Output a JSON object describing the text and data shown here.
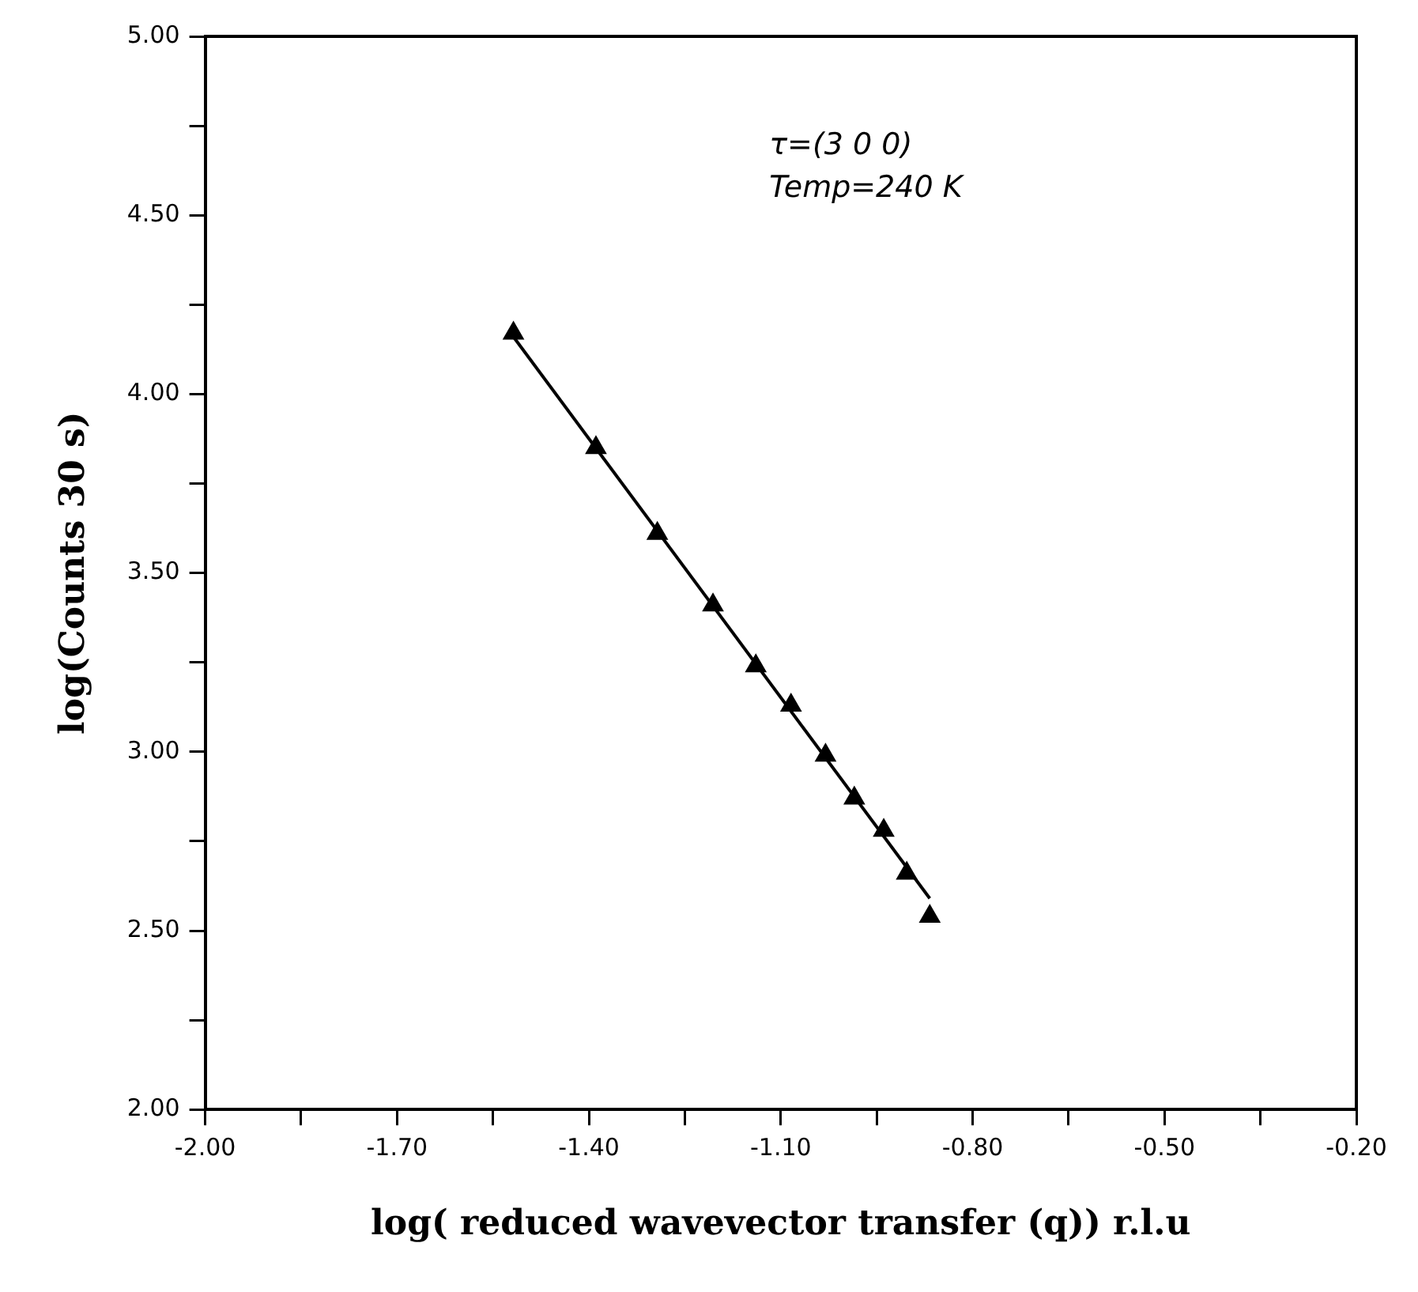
{
  "chart_data": {
    "type": "scatter",
    "xlabel": "log( reduced wavevector transfer (q)) r.l.u",
    "ylabel": "log(Counts 30 s)",
    "annotations": [
      "τ=(3 0 0)",
      "Temp=240 K"
    ],
    "series": [
      {
        "color": "#000000",
        "marker": "triangle",
        "x": [
          -1.518,
          -1.389,
          -1.293,
          -1.206,
          -1.139,
          -1.084,
          -1.03,
          -0.985,
          -0.939,
          -0.903,
          -0.867
        ],
        "values": [
          4.17,
          3.85,
          3.61,
          3.41,
          3.24,
          3.13,
          2.99,
          2.87,
          2.78,
          2.66,
          2.54
        ]
      },
      {
        "type": "line",
        "color": "#000000",
        "marker": "none",
        "line_style": "solid",
        "x": [
          -1.518,
          -0.867
        ],
        "values": [
          4.16,
          2.59
        ]
      }
    ],
    "xlim": [
      -2,
      -0.2
    ],
    "ylim": [
      2,
      5
    ],
    "xticks": [
      {
        "value": -2,
        "label": "-2.00"
      },
      {
        "value": -1.85,
        "label": null
      },
      {
        "value": -1.7,
        "label": "-1.70"
      },
      {
        "value": -1.55,
        "label": null
      },
      {
        "value": -1.4,
        "label": "-1.40"
      },
      {
        "value": -1.25,
        "label": null
      },
      {
        "value": -1.1,
        "label": "-1.10"
      },
      {
        "value": -0.95,
        "label": null
      },
      {
        "value": -0.8,
        "label": "-0.80"
      },
      {
        "value": -0.65,
        "label": null
      },
      {
        "value": -0.5,
        "label": "-0.50"
      },
      {
        "value": -0.35,
        "label": null
      },
      {
        "value": -0.2,
        "label": "-0.20"
      }
    ],
    "yticks": [
      {
        "value": 2,
        "label": "2.00"
      },
      {
        "value": 2.25,
        "label": null
      },
      {
        "value": 2.5,
        "label": "2.50"
      },
      {
        "value": 2.75,
        "label": null
      },
      {
        "value": 3,
        "label": "3.00"
      },
      {
        "value": 3.25,
        "label": null
      },
      {
        "value": 3.5,
        "label": "3.50"
      },
      {
        "value": 3.75,
        "label": null
      },
      {
        "value": 4,
        "label": "4.00"
      },
      {
        "value": 4.25,
        "label": null
      },
      {
        "value": 4.5,
        "label": "4.50"
      },
      {
        "value": 4.75,
        "label": null
      },
      {
        "value": 5,
        "label": "5.00"
      }
    ],
    "grid": false,
    "legend": false
  }
}
